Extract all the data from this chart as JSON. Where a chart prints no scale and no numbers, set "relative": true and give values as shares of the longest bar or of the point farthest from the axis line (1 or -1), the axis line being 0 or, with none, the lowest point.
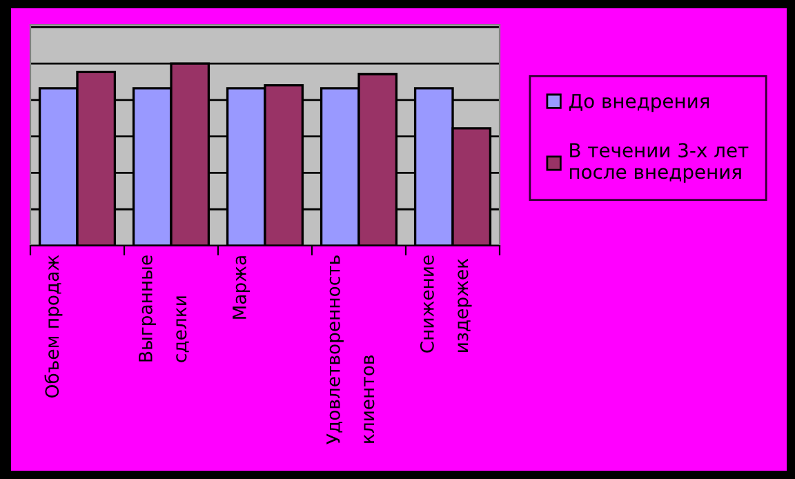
{
  "chart_data": {
    "type": "bar",
    "relative": true,
    "categories": [
      "Объем продаж",
      "Выгранные\nсделки",
      "Маржа",
      "Удовлетворенность\nклиентов",
      "Снижение\nиздержек"
    ],
    "series": [
      {
        "name": "До внедрения",
        "color": "#9999ff",
        "values": [
          0.865,
          0.865,
          0.865,
          0.865,
          0.865
        ]
      },
      {
        "name": "В течении 3-х лет\nпосле внедрения",
        "color": "#993366",
        "values": [
          0.954,
          1,
          0.881,
          0.942,
          0.645
        ]
      }
    ],
    "grid": "y",
    "legend": "right"
  }
}
